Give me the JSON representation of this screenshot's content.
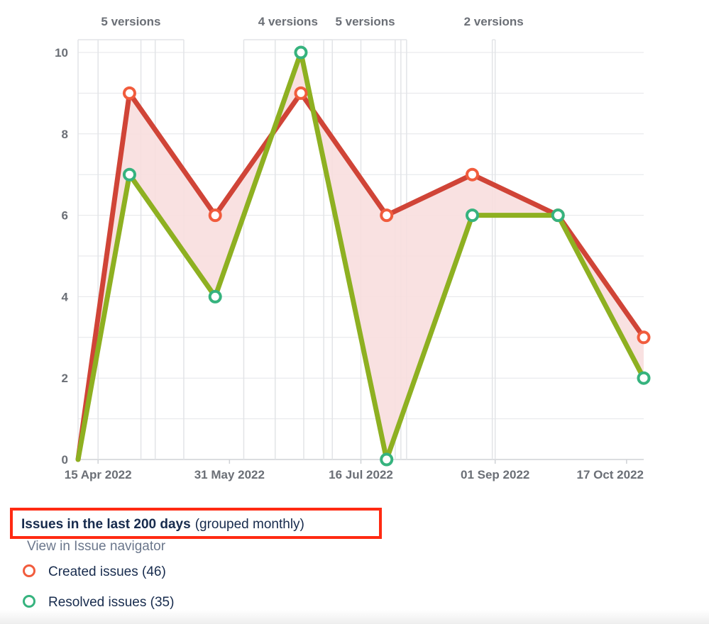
{
  "chart_data": {
    "type": "line",
    "x": [
      "2022-04-08",
      "2022-04-26",
      "2022-05-26",
      "2022-06-25",
      "2022-07-25",
      "2022-08-24",
      "2022-09-23",
      "2022-10-23"
    ],
    "series": [
      {
        "name": "Created issues",
        "values": [
          0,
          9,
          6,
          9,
          6,
          7,
          6,
          3
        ],
        "color": "#d04437",
        "marker": "#f15c3d"
      },
      {
        "name": "Resolved issues",
        "values": [
          0,
          7,
          4,
          10,
          0,
          6,
          6,
          2
        ],
        "color": "#8eb021",
        "marker": "#36b37e"
      }
    ],
    "fill_between": {
      "color": "#f8dede"
    },
    "ylim": [
      0,
      10
    ],
    "y_ticks": [
      "0",
      "2",
      "4",
      "6",
      "8",
      "10"
    ],
    "x_ticks": [
      {
        "date": "2022-04-15",
        "label": "15 Apr 2022"
      },
      {
        "date": "2022-05-31",
        "label": "31 May 2022"
      },
      {
        "date": "2022-07-16",
        "label": "16 Jul 2022"
      },
      {
        "date": "2022-09-01",
        "label": "01 Sep 2022"
      },
      {
        "date": "2022-10-17",
        "label": "17 Oct 2022"
      }
    ],
    "version_markers": [
      {
        "label": "5 versions",
        "dates": [
          "2022-04-08",
          "2022-04-15",
          "2022-04-30",
          "2022-05-05",
          "2022-05-15"
        ]
      },
      {
        "label": "4 versions",
        "dates": [
          "2022-06-05",
          "2022-06-16",
          "2022-06-26",
          "2022-07-06"
        ]
      },
      {
        "label": "5 versions",
        "dates": [
          "2022-07-03",
          "2022-07-16",
          "2022-07-28",
          "2022-07-30",
          "2022-08-01"
        ]
      },
      {
        "label": "2 versions",
        "dates": [
          "2022-08-31",
          "2022-09-01"
        ]
      }
    ],
    "grid": true
  },
  "footer": {
    "title": "Issues in the last 200 days",
    "subtitle": "(grouped monthly)",
    "nav_link": "View in Issue navigator",
    "legend": [
      {
        "label": "Created issues (46)",
        "color": "#f15c3d"
      },
      {
        "label": "Resolved issues (35)",
        "color": "#36b37e"
      }
    ]
  }
}
